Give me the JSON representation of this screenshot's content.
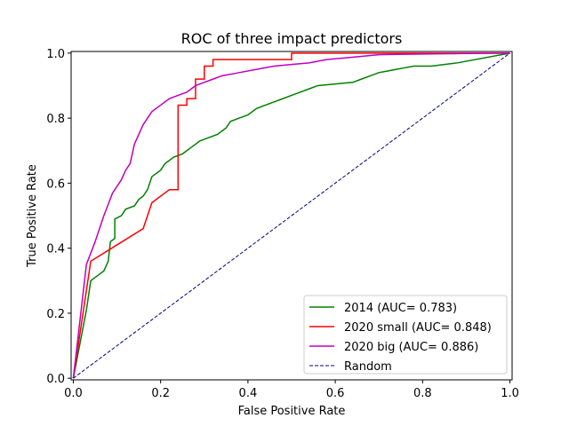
{
  "chart_data": {
    "type": "line",
    "title": "ROC of three impact predictors",
    "xlabel": "False Positive Rate",
    "ylabel": "True Positive Rate",
    "xlim": [
      -0.005,
      1.005
    ],
    "ylim": [
      -0.005,
      1.005
    ],
    "xticks": [
      0.0,
      0.2,
      0.4,
      0.6,
      0.8,
      1.0
    ],
    "yticks": [
      0.0,
      0.2,
      0.4,
      0.6,
      0.8,
      1.0
    ],
    "tick_labels": [
      "0.0",
      "0.2",
      "0.4",
      "0.6",
      "0.8",
      "1.0"
    ],
    "grid": false,
    "legend_position": "lower-right",
    "series": [
      {
        "name": "2014 (AUC= 0.783)",
        "color": "#008000",
        "style": "solid",
        "points": [
          [
            0,
            0
          ],
          [
            0.03,
            0.21
          ],
          [
            0.04,
            0.3
          ],
          [
            0.06,
            0.32
          ],
          [
            0.07,
            0.33
          ],
          [
            0.08,
            0.36
          ],
          [
            0.085,
            0.42
          ],
          [
            0.095,
            0.43
          ],
          [
            0.095,
            0.49
          ],
          [
            0.11,
            0.5
          ],
          [
            0.12,
            0.52
          ],
          [
            0.14,
            0.53
          ],
          [
            0.15,
            0.55
          ],
          [
            0.16,
            0.56
          ],
          [
            0.17,
            0.58
          ],
          [
            0.18,
            0.62
          ],
          [
            0.2,
            0.64
          ],
          [
            0.21,
            0.66
          ],
          [
            0.23,
            0.68
          ],
          [
            0.25,
            0.69
          ],
          [
            0.27,
            0.71
          ],
          [
            0.29,
            0.73
          ],
          [
            0.31,
            0.74
          ],
          [
            0.33,
            0.75
          ],
          [
            0.35,
            0.77
          ],
          [
            0.36,
            0.79
          ],
          [
            0.38,
            0.8
          ],
          [
            0.4,
            0.81
          ],
          [
            0.42,
            0.83
          ],
          [
            0.44,
            0.84
          ],
          [
            0.46,
            0.85
          ],
          [
            0.48,
            0.86
          ],
          [
            0.5,
            0.87
          ],
          [
            0.52,
            0.88
          ],
          [
            0.54,
            0.89
          ],
          [
            0.56,
            0.9
          ],
          [
            0.6,
            0.905
          ],
          [
            0.64,
            0.91
          ],
          [
            0.66,
            0.92
          ],
          [
            0.68,
            0.93
          ],
          [
            0.7,
            0.94
          ],
          [
            0.72,
            0.945
          ],
          [
            0.74,
            0.95
          ],
          [
            0.76,
            0.955
          ],
          [
            0.78,
            0.96
          ],
          [
            0.8,
            0.96
          ],
          [
            0.82,
            0.96
          ],
          [
            0.88,
            0.97
          ],
          [
            1.0,
            1.0
          ]
        ]
      },
      {
        "name": "2020 small (AUC= 0.848)",
        "color": "#ff0000",
        "style": "solid",
        "points": [
          [
            0,
            0
          ],
          [
            0.04,
            0.36
          ],
          [
            0.16,
            0.46
          ],
          [
            0.18,
            0.54
          ],
          [
            0.22,
            0.58
          ],
          [
            0.24,
            0.58
          ],
          [
            0.24,
            0.84
          ],
          [
            0.26,
            0.84
          ],
          [
            0.26,
            0.86
          ],
          [
            0.28,
            0.86
          ],
          [
            0.28,
            0.92
          ],
          [
            0.3,
            0.92
          ],
          [
            0.3,
            0.96
          ],
          [
            0.32,
            0.96
          ],
          [
            0.32,
            0.98
          ],
          [
            0.5,
            0.98
          ],
          [
            0.5,
            1.0
          ],
          [
            1.0,
            1.0
          ]
        ]
      },
      {
        "name": "2020 big (AUC= 0.886)",
        "color": "#bf00bf",
        "style": "solid",
        "points": [
          [
            0,
            0
          ],
          [
            0.03,
            0.35
          ],
          [
            0.05,
            0.42
          ],
          [
            0.07,
            0.5
          ],
          [
            0.09,
            0.57
          ],
          [
            0.11,
            0.61
          ],
          [
            0.12,
            0.64
          ],
          [
            0.13,
            0.66
          ],
          [
            0.14,
            0.72
          ],
          [
            0.15,
            0.75
          ],
          [
            0.16,
            0.78
          ],
          [
            0.17,
            0.8
          ],
          [
            0.18,
            0.82
          ],
          [
            0.2,
            0.84
          ],
          [
            0.22,
            0.86
          ],
          [
            0.24,
            0.87
          ],
          [
            0.26,
            0.88
          ],
          [
            0.28,
            0.9
          ],
          [
            0.3,
            0.91
          ],
          [
            0.32,
            0.92
          ],
          [
            0.34,
            0.93
          ],
          [
            0.38,
            0.94
          ],
          [
            0.42,
            0.95
          ],
          [
            0.46,
            0.96
          ],
          [
            0.5,
            0.965
          ],
          [
            0.54,
            0.97
          ],
          [
            0.58,
            0.98
          ],
          [
            0.62,
            0.985
          ],
          [
            0.66,
            0.99
          ],
          [
            0.7,
            0.995
          ],
          [
            0.74,
            0.996
          ],
          [
            0.8,
            0.997
          ],
          [
            0.86,
            0.998
          ],
          [
            0.9,
            0.999
          ],
          [
            1.0,
            1.0
          ]
        ]
      },
      {
        "name": "Random",
        "color": "#000080",
        "style": "dashed",
        "points": [
          [
            0,
            0
          ],
          [
            1,
            1
          ]
        ]
      }
    ]
  }
}
